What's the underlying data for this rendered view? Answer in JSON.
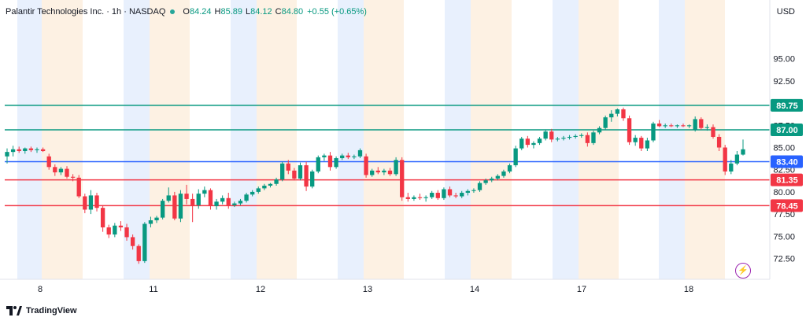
{
  "header": {
    "symbol": "Palantir Technologies Inc. · 1h · NASDAQ",
    "open_label": "O",
    "open": "84.24",
    "high_label": "H",
    "high": "85.89",
    "low_label": "L",
    "low": "84.12",
    "close_label": "C",
    "close": "84.80",
    "change": "+0.55 (+0.65%)"
  },
  "currency": "USD",
  "brand": "TradingView",
  "colors": {
    "up": "#089981",
    "down": "#f23645",
    "level_green": "#089981",
    "level_blue": "#2962ff",
    "level_red": "#f23645",
    "band_blue": "#e8f0fd",
    "band_orange": "#fdf1e3"
  },
  "chart_data": {
    "type": "candlestick",
    "ylim": [
      70,
      97
    ],
    "y_ticks": [
      "95.00",
      "92.50",
      "90.00",
      "87.50",
      "85.00",
      "82.50",
      "80.00",
      "77.50",
      "75.00",
      "72.50"
    ],
    "x_ticks": [
      "8",
      "11",
      "12",
      "13",
      "14",
      "17",
      "18"
    ],
    "levels": [
      {
        "value": 89.75,
        "label": "89.75",
        "color": "green"
      },
      {
        "value": 87.0,
        "label": "87.00",
        "color": "green"
      },
      {
        "value": 83.4,
        "label": "83.40",
        "color": "blue"
      },
      {
        "value": 81.35,
        "label": "81.35",
        "color": "red"
      },
      {
        "value": 78.45,
        "label": "78.45",
        "color": "red"
      }
    ],
    "candles": [
      [
        84.0,
        84.9,
        83.2,
        84.5
      ],
      [
        84.5,
        85.2,
        84.0,
        84.8
      ],
      [
        84.8,
        85.1,
        84.4,
        84.6
      ],
      [
        84.6,
        85.0,
        84.3,
        84.9
      ],
      [
        84.9,
        85.1,
        84.5,
        84.7
      ],
      [
        84.7,
        85.0,
        84.4,
        84.8
      ],
      [
        84.8,
        85.0,
        84.5,
        84.6
      ],
      [
        84.0,
        84.3,
        82.5,
        82.8
      ],
      [
        82.8,
        83.1,
        81.8,
        82.2
      ],
      [
        82.2,
        82.8,
        81.9,
        82.6
      ],
      [
        82.6,
        82.9,
        81.5,
        81.7
      ],
      [
        81.7,
        82.0,
        81.2,
        81.6
      ],
      [
        81.6,
        81.9,
        79.3,
        79.5
      ],
      [
        79.5,
        79.8,
        77.6,
        78.0
      ],
      [
        78.0,
        80.2,
        77.5,
        79.6
      ],
      [
        79.6,
        79.9,
        77.8,
        78.2
      ],
      [
        78.2,
        78.5,
        75.5,
        76.0
      ],
      [
        76.0,
        76.3,
        74.8,
        75.2
      ],
      [
        75.2,
        76.5,
        74.9,
        76.2
      ],
      [
        76.2,
        76.7,
        75.6,
        76.0
      ],
      [
        76.0,
        76.4,
        74.5,
        74.9
      ],
      [
        74.9,
        75.2,
        73.5,
        73.9
      ],
      [
        73.9,
        74.1,
        71.9,
        72.2
      ],
      [
        72.2,
        76.6,
        72.0,
        76.4
      ],
      [
        76.4,
        77.2,
        76.0,
        76.8
      ],
      [
        76.8,
        77.3,
        76.5,
        77.1
      ],
      [
        77.1,
        79.2,
        76.9,
        79.0
      ],
      [
        79.0,
        80.5,
        78.8,
        79.6
      ],
      [
        79.6,
        80.0,
        76.8,
        77.0
      ],
      [
        77.0,
        80.2,
        76.6,
        79.8
      ],
      [
        79.8,
        80.8,
        78.6,
        79.2
      ],
      [
        79.2,
        79.8,
        76.6,
        78.5
      ],
      [
        78.5,
        80.3,
        78.1,
        79.8
      ],
      [
        79.8,
        80.6,
        79.4,
        80.2
      ],
      [
        80.2,
        80.4,
        78.0,
        78.4
      ],
      [
        78.4,
        79.2,
        78.0,
        78.9
      ],
      [
        78.9,
        79.6,
        78.6,
        79.3
      ],
      [
        79.3,
        79.9,
        78.1,
        78.5
      ],
      [
        78.5,
        78.9,
        78.3,
        78.7
      ],
      [
        78.7,
        79.2,
        78.5,
        79.0
      ],
      [
        79.0,
        79.9,
        78.8,
        79.7
      ],
      [
        79.7,
        80.2,
        79.5,
        80.0
      ],
      [
        80.0,
        80.6,
        79.8,
        80.4
      ],
      [
        80.4,
        80.9,
        80.2,
        80.7
      ],
      [
        80.7,
        81.0,
        80.5,
        80.9
      ],
      [
        80.9,
        81.6,
        80.7,
        81.4
      ],
      [
        81.4,
        83.4,
        81.2,
        83.2
      ],
      [
        83.2,
        83.6,
        82.0,
        82.4
      ],
      [
        82.4,
        82.7,
        81.3,
        81.5
      ],
      [
        81.5,
        83.3,
        81.3,
        83.0
      ],
      [
        83.0,
        83.4,
        80.1,
        80.6
      ],
      [
        80.6,
        82.5,
        80.4,
        82.3
      ],
      [
        82.3,
        84.1,
        82.1,
        83.9
      ],
      [
        83.9,
        84.3,
        83.5,
        84.1
      ],
      [
        84.1,
        84.5,
        82.4,
        82.8
      ],
      [
        82.8,
        84.0,
        82.6,
        83.8
      ],
      [
        83.8,
        84.3,
        83.6,
        84.1
      ],
      [
        84.1,
        84.4,
        83.7,
        83.9
      ],
      [
        83.9,
        84.2,
        83.7,
        84.0
      ],
      [
        84.0,
        84.9,
        83.8,
        84.7
      ],
      [
        84.0,
        84.3,
        81.6,
        81.9
      ],
      [
        81.9,
        82.6,
        81.7,
        82.4
      ],
      [
        82.4,
        82.8,
        82.0,
        82.2
      ],
      [
        82.2,
        82.6,
        81.9,
        82.4
      ],
      [
        82.4,
        82.7,
        81.8,
        82.0
      ],
      [
        82.0,
        83.9,
        81.8,
        83.6
      ],
      [
        83.6,
        83.9,
        79.0,
        79.4
      ],
      [
        79.4,
        79.9,
        78.9,
        79.2
      ],
      [
        79.2,
        79.6,
        79.0,
        79.4
      ],
      [
        79.4,
        79.8,
        79.1,
        79.3
      ],
      [
        79.3,
        79.6,
        78.9,
        79.4
      ],
      [
        79.4,
        80.1,
        79.2,
        79.9
      ],
      [
        79.9,
        80.2,
        79.1,
        79.3
      ],
      [
        79.3,
        80.5,
        79.1,
        80.3
      ],
      [
        80.3,
        80.6,
        79.4,
        79.6
      ],
      [
        79.6,
        79.9,
        79.3,
        79.5
      ],
      [
        79.5,
        80.1,
        79.3,
        79.9
      ],
      [
        79.9,
        80.3,
        79.6,
        80.1
      ],
      [
        80.1,
        80.4,
        79.9,
        80.2
      ],
      [
        80.2,
        81.2,
        80.0,
        81.0
      ],
      [
        81.0,
        81.5,
        80.8,
        81.3
      ],
      [
        81.3,
        81.7,
        81.1,
        81.5
      ],
      [
        81.5,
        82.0,
        81.3,
        81.8
      ],
      [
        81.8,
        82.5,
        81.6,
        82.3
      ],
      [
        82.3,
        83.2,
        82.1,
        83.0
      ],
      [
        83.0,
        85.2,
        82.8,
        84.9
      ],
      [
        84.9,
        86.2,
        84.7,
        86.0
      ],
      [
        86.0,
        86.3,
        85.0,
        85.3
      ],
      [
        85.3,
        85.7,
        84.9,
        85.5
      ],
      [
        85.5,
        86.2,
        85.3,
        86.0
      ],
      [
        86.0,
        87.0,
        85.8,
        86.8
      ],
      [
        86.8,
        87.1,
        85.6,
        85.9
      ],
      [
        85.9,
        86.2,
        85.7,
        86.0
      ],
      [
        86.0,
        86.3,
        85.8,
        86.1
      ],
      [
        86.1,
        86.4,
        85.9,
        86.2
      ],
      [
        86.2,
        86.5,
        86.0,
        86.3
      ],
      [
        86.3,
        86.6,
        86.1,
        86.4
      ],
      [
        86.4,
        86.7,
        85.1,
        85.5
      ],
      [
        85.5,
        86.9,
        85.3,
        86.7
      ],
      [
        86.7,
        87.4,
        86.5,
        87.2
      ],
      [
        87.2,
        88.6,
        87.0,
        88.4
      ],
      [
        88.4,
        89.2,
        87.9,
        88.8
      ],
      [
        88.8,
        89.4,
        88.5,
        89.3
      ],
      [
        89.3,
        89.5,
        88.0,
        88.3
      ],
      [
        88.3,
        88.6,
        85.3,
        85.6
      ],
      [
        85.6,
        86.4,
        85.2,
        86.1
      ],
      [
        86.1,
        86.3,
        84.6,
        84.9
      ],
      [
        84.9,
        86.1,
        84.6,
        85.8
      ],
      [
        85.8,
        87.9,
        85.6,
        87.7
      ],
      [
        87.7,
        88.1,
        87.3,
        87.4
      ],
      [
        87.4,
        87.7,
        87.2,
        87.5
      ],
      [
        87.5,
        87.7,
        87.3,
        87.4
      ],
      [
        87.4,
        87.6,
        87.2,
        87.5
      ],
      [
        87.5,
        87.7,
        87.3,
        87.4
      ],
      [
        87.4,
        87.6,
        87.2,
        87.5
      ],
      [
        87.0,
        88.5,
        86.8,
        88.2
      ],
      [
        88.2,
        88.4,
        87.0,
        87.2
      ],
      [
        87.2,
        87.6,
        86.9,
        87.3
      ],
      [
        87.3,
        87.6,
        86.0,
        86.2
      ],
      [
        86.2,
        86.5,
        84.6,
        85.0
      ],
      [
        85.0,
        85.3,
        81.9,
        82.3
      ],
      [
        82.3,
        83.6,
        82.0,
        83.2
      ],
      [
        83.2,
        84.6,
        83.0,
        84.2
      ],
      [
        84.2,
        85.9,
        84.1,
        84.8
      ]
    ]
  }
}
